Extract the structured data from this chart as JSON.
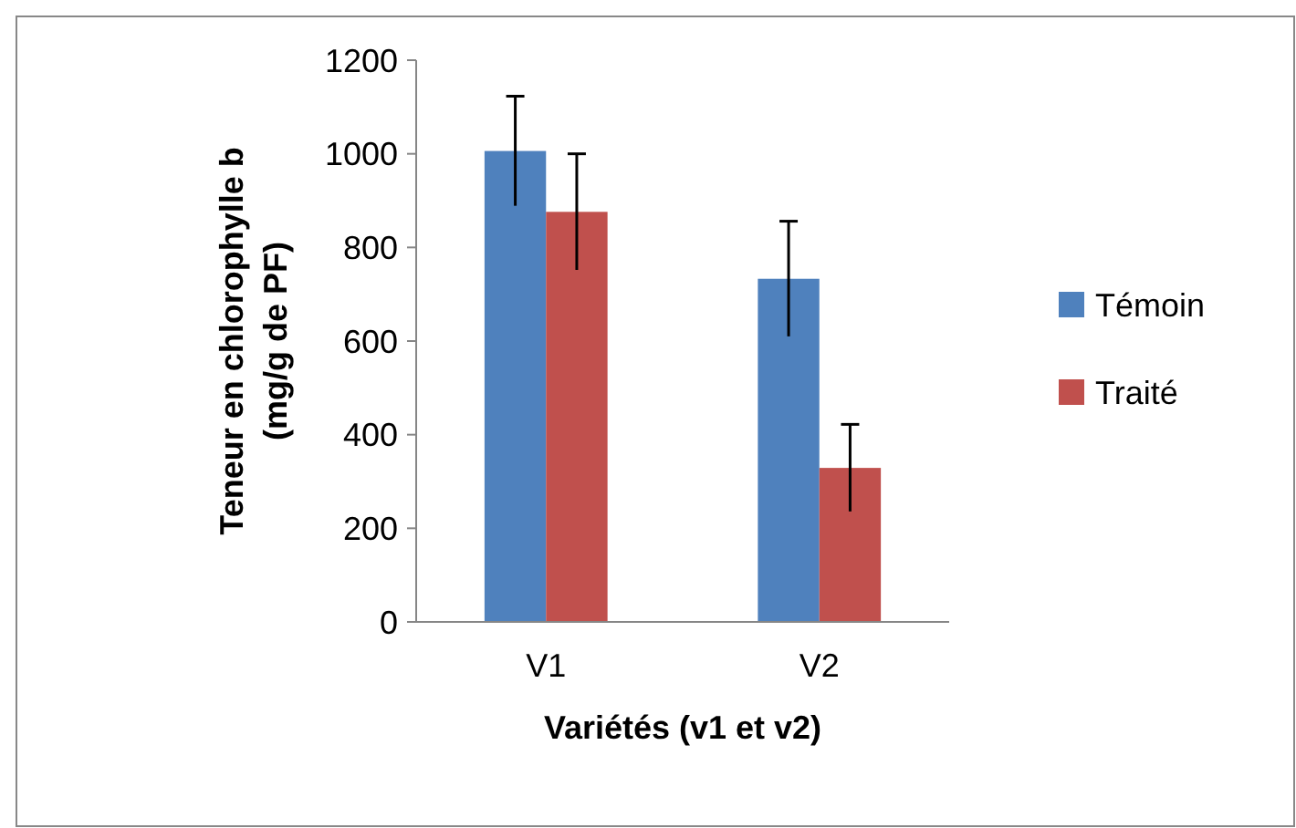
{
  "chart_data": {
    "type": "bar",
    "xlabel": "Variétés (v1 et v2)",
    "ylabel": "Teneur en chlorophylle b (mg/g de PF)",
    "categories": [
      "V1",
      "V2"
    ],
    "series": [
      {
        "name": "Témoin",
        "color": "#4f81bd",
        "values": [
          1006,
          733
        ],
        "errors": [
          117,
          123
        ]
      },
      {
        "name": "Traité",
        "color": "#c0504d",
        "values": [
          876,
          329
        ],
        "errors": [
          124,
          93
        ]
      }
    ],
    "ylim": [
      0,
      1200
    ],
    "yticks": [
      0,
      200,
      400,
      600,
      800,
      1000,
      1200
    ],
    "grid": false,
    "legend": "right"
  }
}
